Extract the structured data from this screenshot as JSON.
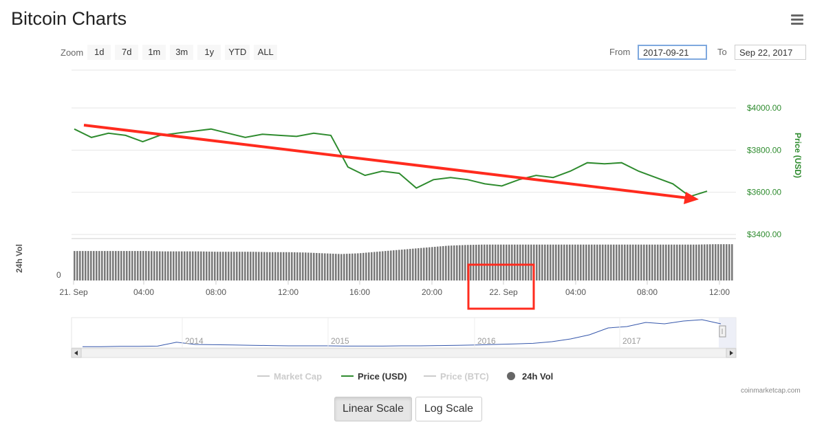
{
  "header": {
    "title": "Bitcoin Charts",
    "menu_icon": "hamburger-menu-icon"
  },
  "zoom": {
    "label": "Zoom",
    "buttons": [
      "1d",
      "7d",
      "1m",
      "3m",
      "1y",
      "YTD",
      "ALL"
    ]
  },
  "range": {
    "from_label": "From",
    "from_value": "2017-09-21",
    "to_label": "To",
    "to_value": "Sep 22, 2017"
  },
  "chart_data": {
    "type": "line",
    "title": "",
    "price_series": {
      "name": "Price (USD)",
      "color": "#2e8b2e",
      "x": [
        "21 Sep 00:00",
        "21 Sep 01:00",
        "21 Sep 02:00",
        "21 Sep 03:00",
        "21 Sep 04:00",
        "21 Sep 05:00",
        "21 Sep 06:00",
        "21 Sep 07:00",
        "21 Sep 08:00",
        "21 Sep 09:00",
        "21 Sep 10:00",
        "21 Sep 11:00",
        "21 Sep 12:00",
        "21 Sep 13:00",
        "21 Sep 14:00",
        "21 Sep 15:00",
        "21 Sep 16:00",
        "21 Sep 17:00",
        "21 Sep 18:00",
        "21 Sep 19:00",
        "21 Sep 20:00",
        "21 Sep 21:00",
        "21 Sep 22:00",
        "21 Sep 23:00",
        "22 Sep 00:00",
        "22 Sep 01:00",
        "22 Sep 02:00",
        "22 Sep 03:00",
        "22 Sep 04:00",
        "22 Sep 05:00",
        "22 Sep 06:00",
        "22 Sep 07:00",
        "22 Sep 08:00",
        "22 Sep 09:00",
        "22 Sep 10:00",
        "22 Sep 11:00",
        "22 Sep 12:00",
        "22 Sep 12:40"
      ],
      "y": [
        3900,
        3860,
        3880,
        3870,
        3840,
        3870,
        3880,
        3890,
        3900,
        3880,
        3860,
        3875,
        3870,
        3865,
        3880,
        3870,
        3720,
        3680,
        3700,
        3690,
        3620,
        3660,
        3670,
        3660,
        3640,
        3630,
        3660,
        3680,
        3670,
        3700,
        3740,
        3735,
        3740,
        3700,
        3670,
        3640,
        3580,
        3605
      ]
    },
    "y_axis": {
      "title": "Price (USD)",
      "ticks": [
        "$4000.00",
        "$3800.00",
        "$3600.00",
        "$3400.00"
      ],
      "tick_values": [
        4000,
        3800,
        3600,
        3400
      ],
      "ylim": [
        3400,
        4000
      ]
    },
    "vol_axis": {
      "title": "24h Vol",
      "zero_label": "0"
    },
    "x_axis": {
      "ticks": [
        "21. Sep",
        "04:00",
        "08:00",
        "12:00",
        "16:00",
        "20:00",
        "22. Sep",
        "04:00",
        "08:00",
        "12:00"
      ]
    },
    "volume_levels": [
      0.78,
      0.78,
      0.78,
      0.78,
      0.78,
      0.77,
      0.77,
      0.77,
      0.76,
      0.76,
      0.76,
      0.75,
      0.75,
      0.74,
      0.72,
      0.7,
      0.72,
      0.76,
      0.8,
      0.84,
      0.88,
      0.92,
      0.94,
      0.95,
      0.95,
      0.95,
      0.95,
      0.95,
      0.95,
      0.95,
      0.95,
      0.95,
      0.95,
      0.95,
      0.95,
      0.95,
      0.96,
      0.96
    ],
    "navigator": {
      "ticks": [
        "2014",
        "2015",
        "2016",
        "2017"
      ]
    },
    "legend": [
      {
        "name": "Market Cap",
        "active": false
      },
      {
        "name": "Price (USD)",
        "active": true
      },
      {
        "name": "Price (BTC)",
        "active": false
      },
      {
        "name": "24h Vol",
        "active": true
      }
    ]
  },
  "scale": {
    "linear": "Linear Scale",
    "log": "Log Scale"
  },
  "credit": "coinmarketcap.com",
  "colors": {
    "price": "#2e8b2e",
    "annotation": "#ff2b1e",
    "navigator": "#3355aa"
  }
}
